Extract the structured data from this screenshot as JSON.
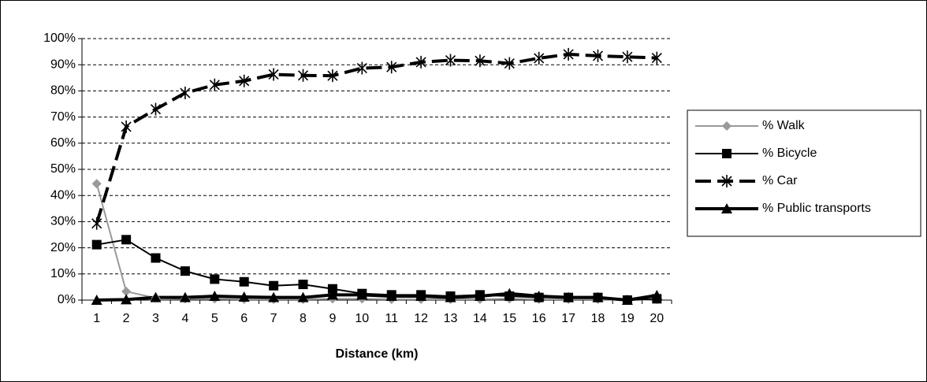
{
  "chart_data": {
    "type": "line",
    "x_label": "Distance (km)",
    "categories": [
      "1",
      "2",
      "3",
      "4",
      "5",
      "6",
      "7",
      "8",
      "9",
      "10",
      "11",
      "12",
      "13",
      "14",
      "15",
      "16",
      "17",
      "18",
      "19",
      "20"
    ],
    "series": [
      {
        "name": "% Walk",
        "color": "#999999",
        "marker": "diamond",
        "dashed": false,
        "width": 2,
        "values": [
          44.5,
          3.3,
          0.8,
          0.5,
          0.5,
          0.3,
          0.3,
          0.3,
          0.5,
          0.5,
          0.3,
          0.3,
          0.3,
          0.3,
          0.5,
          0.3,
          0.3,
          0.3,
          0,
          0.3
        ]
      },
      {
        "name": "% Bicycle",
        "color": "#000000",
        "marker": "square",
        "dashed": false,
        "width": 2,
        "values": [
          21.2,
          23.1,
          16.1,
          11.1,
          8,
          7,
          5.5,
          6,
          4.3,
          2.5,
          2,
          2,
          1.5,
          2,
          1.5,
          1,
          1,
          1,
          0,
          0.5
        ]
      },
      {
        "name": "% Car",
        "color": "#000000",
        "marker": "asterisk",
        "dashed": true,
        "width": 4,
        "values": [
          29.3,
          66.3,
          73,
          79.2,
          82.3,
          83.8,
          86.3,
          85.9,
          85.8,
          88.7,
          89.1,
          91,
          91.7,
          91.5,
          90.5,
          92.5,
          94,
          93.4,
          93,
          92.6
        ]
      },
      {
        "name": "% Public transports",
        "color": "#000000",
        "marker": "triangle",
        "dashed": false,
        "width": 4,
        "values": [
          0,
          0.2,
          1,
          1,
          1.5,
          1.2,
          1,
          1,
          2,
          2,
          1.5,
          1.5,
          1,
          1.5,
          2.5,
          1.5,
          1,
          1,
          0,
          1.8
        ]
      }
    ],
    "ylim": [
      0,
      100
    ],
    "yticks": [
      {
        "value": 0,
        "label": "0%"
      },
      {
        "value": 10,
        "label": "10%"
      },
      {
        "value": 20,
        "label": "20%"
      },
      {
        "value": 30,
        "label": "30%"
      },
      {
        "value": 40,
        "label": "40%"
      },
      {
        "value": 50,
        "label": "50%"
      },
      {
        "value": 60,
        "label": "60%"
      },
      {
        "value": 70,
        "label": "70%"
      },
      {
        "value": 80,
        "label": "80%"
      },
      {
        "value": 90,
        "label": "90%"
      },
      {
        "value": 100,
        "label": "100%"
      }
    ],
    "grid": true,
    "legend": "right"
  }
}
